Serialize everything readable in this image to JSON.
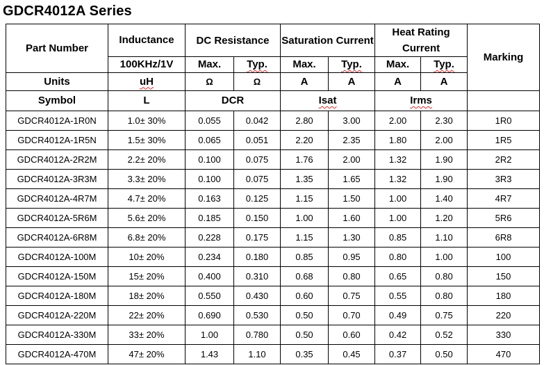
{
  "title": "GDCR4012A Series",
  "header": {
    "part_number": "Part Number",
    "inductance": "Inductance",
    "dc_resistance": "DC Resistance",
    "saturation_current": "Saturation Current",
    "heat_rating_current": "Heat Rating Current",
    "marking": "Marking",
    "test_condition": "100KHz/1V",
    "max": "Max.",
    "typ": "Typ.",
    "units_label": "Units",
    "unit_inductance": "uH",
    "unit_ohm": "Ω",
    "unit_amp": "A",
    "symbol_label": "Symbol",
    "symbol_inductance": "L",
    "symbol_dcr": "DCR",
    "symbol_isat": "Isat",
    "symbol_irms": "Irms"
  },
  "rows": [
    {
      "part": "GDCR4012A-1R0N",
      "inductance": "1.0± 30%",
      "dcr_max": "0.055",
      "dcr_typ": "0.042",
      "isat_max": "2.80",
      "isat_typ": "3.00",
      "irms_max": "2.00",
      "irms_typ": "2.30",
      "marking": "1R0"
    },
    {
      "part": "GDCR4012A-1R5N",
      "inductance": "1.5± 30%",
      "dcr_max": "0.065",
      "dcr_typ": "0.051",
      "isat_max": "2.20",
      "isat_typ": "2.35",
      "irms_max": "1.80",
      "irms_typ": "2.00",
      "marking": "1R5"
    },
    {
      "part": "GDCR4012A-2R2M",
      "inductance": "2.2± 20%",
      "dcr_max": "0.100",
      "dcr_typ": "0.075",
      "isat_max": "1.76",
      "isat_typ": "2.00",
      "irms_max": "1.32",
      "irms_typ": "1.90",
      "marking": "2R2"
    },
    {
      "part": "GDCR4012A-3R3M",
      "inductance": "3.3± 20%",
      "dcr_max": "0.100",
      "dcr_typ": "0.075",
      "isat_max": "1.35",
      "isat_typ": "1.65",
      "irms_max": "1.32",
      "irms_typ": "1.90",
      "marking": "3R3"
    },
    {
      "part": "GDCR4012A-4R7M",
      "inductance": "4.7± 20%",
      "dcr_max": "0.163",
      "dcr_typ": "0.125",
      "isat_max": "1.15",
      "isat_typ": "1.50",
      "irms_max": "1.00",
      "irms_typ": "1.40",
      "marking": "4R7"
    },
    {
      "part": "GDCR4012A-5R6M",
      "inductance": "5.6± 20%",
      "dcr_max": "0.185",
      "dcr_typ": "0.150",
      "isat_max": "1.00",
      "isat_typ": "1.60",
      "irms_max": "1.00",
      "irms_typ": "1.20",
      "marking": "5R6"
    },
    {
      "part": "GDCR4012A-6R8M",
      "inductance": "6.8± 20%",
      "dcr_max": "0.228",
      "dcr_typ": "0.175",
      "isat_max": "1.15",
      "isat_typ": "1.30",
      "irms_max": "0.85",
      "irms_typ": "1.10",
      "marking": "6R8"
    },
    {
      "part": "GDCR4012A-100M",
      "inductance": "10± 20%",
      "dcr_max": "0.234",
      "dcr_typ": "0.180",
      "isat_max": "0.85",
      "isat_typ": "0.95",
      "irms_max": "0.80",
      "irms_typ": "1.00",
      "marking": "100"
    },
    {
      "part": "GDCR4012A-150M",
      "inductance": "15± 20%",
      "dcr_max": "0.400",
      "dcr_typ": "0.310",
      "isat_max": "0.68",
      "isat_typ": "0.80",
      "irms_max": "0.65",
      "irms_typ": "0.80",
      "marking": "150"
    },
    {
      "part": "GDCR4012A-180M",
      "inductance": "18± 20%",
      "dcr_max": "0.550",
      "dcr_typ": "0.430",
      "isat_max": "0.60",
      "isat_typ": "0.75",
      "irms_max": "0.55",
      "irms_typ": "0.80",
      "marking": "180"
    },
    {
      "part": "GDCR4012A-220M",
      "inductance": "22± 20%",
      "dcr_max": "0.690",
      "dcr_typ": "0.530",
      "isat_max": "0.50",
      "isat_typ": "0.70",
      "irms_max": "0.49",
      "irms_typ": "0.75",
      "marking": "220"
    },
    {
      "part": "GDCR4012A-330M",
      "inductance": "33± 20%",
      "dcr_max": "1.00",
      "dcr_typ": "0.780",
      "isat_max": "0.50",
      "isat_typ": "0.60",
      "irms_max": "0.42",
      "irms_typ": "0.52",
      "marking": "330"
    },
    {
      "part": "GDCR4012A-470M",
      "inductance": "47± 20%",
      "dcr_max": "1.43",
      "dcr_typ": "1.10",
      "isat_max": "0.35",
      "isat_typ": "0.45",
      "irms_max": "0.37",
      "irms_typ": "0.50",
      "marking": "470"
    }
  ]
}
